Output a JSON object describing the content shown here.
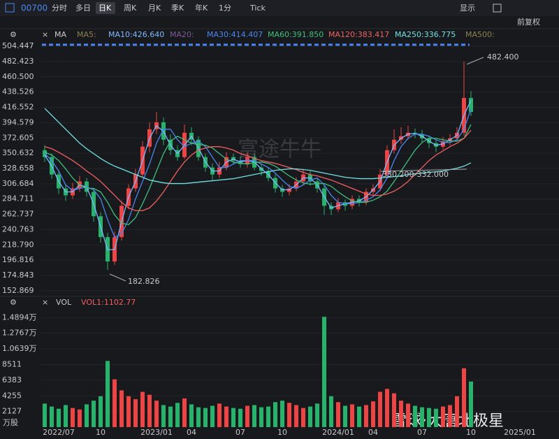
{
  "toolbar": {
    "code": "00700",
    "tabs": [
      "分时",
      "多日",
      "日K",
      "周K",
      "月K",
      "季K",
      "年K",
      "1分",
      "Tick"
    ],
    "display": "显示",
    "adjust": "前复权"
  },
  "ma_label": "MA",
  "watermarks": [
    "富途牛牛",
    "雪球·大唐北极星"
  ],
  "chart_data": {
    "type": "candlestick",
    "categories": [
      null,
      null,
      "2022/07",
      null,
      null,
      null,
      null,
      null,
      "10",
      null,
      null,
      null,
      null,
      null,
      null,
      null,
      "2023/01",
      null,
      null,
      null,
      null,
      "04",
      null,
      null,
      null,
      null,
      null,
      null,
      "07",
      null,
      null,
      null,
      null,
      null,
      "10",
      null,
      null,
      null,
      null,
      null,
      null,
      null,
      "2024/01",
      null,
      null,
      null,
      null,
      "04",
      null,
      null,
      null,
      null,
      null,
      null,
      "07",
      null,
      null,
      null,
      null,
      null,
      null,
      "10",
      null,
      null,
      null,
      null,
      null,
      null,
      "2025/01"
    ],
    "open": [
      355,
      345,
      320,
      300,
      290,
      300,
      310,
      295,
      260,
      230,
      195,
      230,
      275,
      300,
      320,
      360,
      385,
      395,
      370,
      355,
      345,
      380,
      370,
      345,
      330,
      320,
      330,
      345,
      340,
      335,
      345,
      330,
      325,
      315,
      300,
      295,
      300,
      310,
      320,
      310,
      300,
      275,
      270,
      280,
      275,
      285,
      280,
      295,
      300,
      320,
      355,
      370,
      375,
      380,
      378,
      372,
      365,
      360,
      368,
      372,
      380,
      430,
      null,
      null,
      null,
      null,
      null,
      null,
      null
    ],
    "high": [
      362,
      350,
      326,
      306,
      308,
      318,
      315,
      300,
      266,
      236,
      238,
      282,
      306,
      328,
      368,
      395,
      410,
      402,
      378,
      362,
      392,
      388,
      375,
      350,
      336,
      338,
      352,
      350,
      346,
      352,
      350,
      336,
      330,
      320,
      305,
      306,
      316,
      328,
      325,
      315,
      304,
      280,
      286,
      284,
      290,
      290,
      300,
      306,
      328,
      362,
      385,
      388,
      390,
      386,
      384,
      376,
      370,
      374,
      378,
      388,
      482.4,
      440,
      null,
      null,
      null,
      null,
      null,
      null,
      null
    ],
    "low": [
      338,
      314,
      292,
      282,
      285,
      295,
      288,
      252,
      222,
      182.826,
      190,
      225,
      270,
      295,
      315,
      352,
      378,
      362,
      348,
      340,
      342,
      362,
      340,
      324,
      312,
      315,
      326,
      334,
      330,
      330,
      326,
      318,
      310,
      294,
      288,
      290,
      296,
      305,
      304,
      294,
      262,
      262,
      266,
      268,
      270,
      274,
      276,
      290,
      296,
      316,
      350,
      364,
      370,
      372,
      366,
      358,
      352,
      356,
      362,
      368,
      376,
      404,
      null,
      null,
      null,
      null,
      null,
      null,
      null
    ],
    "close": [
      345,
      320,
      300,
      290,
      300,
      310,
      295,
      260,
      230,
      195,
      230,
      275,
      300,
      320,
      360,
      385,
      395,
      370,
      355,
      345,
      380,
      370,
      345,
      330,
      320,
      330,
      345,
      340,
      335,
      345,
      330,
      325,
      315,
      300,
      295,
      300,
      310,
      320,
      310,
      300,
      275,
      270,
      280,
      275,
      285,
      280,
      295,
      300,
      320,
      355,
      370,
      375,
      380,
      378,
      372,
      365,
      360,
      368,
      372,
      380,
      430,
      410,
      null,
      null,
      null,
      null,
      null,
      null,
      null
    ],
    "up_color": "#ef4444",
    "down_color": "#26b36b",
    "series": [
      {
        "name": "MA5:",
        "color": "#8f7f4f"
      },
      {
        "name": "MA10:426.640",
        "color": "#7fb8ff",
        "values": [
          348,
          332,
          310,
          295,
          295,
          305,
          302,
          278,
          245,
          212,
          212,
          252,
          288,
          310,
          340,
          372,
          390,
          382,
          362,
          350,
          362,
          375,
          358,
          338,
          325,
          325,
          338,
          342,
          338,
          340,
          338,
          328,
          320,
          308,
          298,
          298,
          305,
          315,
          315,
          305,
          288,
          272,
          275,
          278,
          280,
          282,
          288,
          298,
          310,
          338,
          362,
          372,
          378,
          379,
          375,
          368,
          362,
          364,
          370,
          376,
          405,
          426.64,
          null,
          null,
          null,
          null,
          null,
          null,
          null
        ]
      },
      {
        "name": "MA20:",
        "color": "#7a5a9a"
      },
      {
        "name": "MA30:414.407",
        "color": "#4a86f0",
        "values": [
          350,
          340,
          325,
          305,
          297,
          300,
          302,
          298,
          285,
          255,
          230,
          235,
          255,
          285,
          310,
          335,
          365,
          385,
          385,
          370,
          360,
          365,
          368,
          360,
          345,
          330,
          330,
          335,
          340,
          340,
          340,
          335,
          330,
          322,
          312,
          303,
          300,
          305,
          312,
          315,
          305,
          290,
          280,
          278,
          278,
          280,
          283,
          288,
          298,
          315,
          340,
          360,
          372,
          378,
          378,
          375,
          370,
          366,
          366,
          370,
          385,
          414.407,
          null,
          null,
          null,
          null,
          null,
          null,
          null
        ]
      },
      {
        "name": "MA60:391.850",
        "color": "#3fbf7f",
        "values": [
          352,
          348,
          340,
          328,
          315,
          305,
          300,
          300,
          295,
          280,
          262,
          250,
          248,
          258,
          278,
          300,
          325,
          350,
          368,
          375,
          370,
          365,
          363,
          362,
          358,
          350,
          342,
          338,
          336,
          335,
          337,
          338,
          336,
          332,
          325,
          318,
          312,
          308,
          306,
          307,
          307,
          303,
          295,
          288,
          282,
          280,
          280,
          283,
          288,
          296,
          310,
          325,
          340,
          355,
          366,
          372,
          372,
          370,
          368,
          368,
          372,
          391.85,
          null,
          null,
          null,
          null,
          null,
          null,
          null
        ]
      },
      {
        "name": "MA120:383.417",
        "color": "#f06060",
        "values": [
          360,
          357,
          352,
          346,
          340,
          333,
          325,
          318,
          310,
          300,
          290,
          280,
          272,
          268,
          268,
          272,
          282,
          295,
          310,
          325,
          338,
          348,
          355,
          358,
          360,
          360,
          358,
          355,
          350,
          347,
          343,
          340,
          338,
          336,
          333,
          330,
          327,
          323,
          320,
          318,
          315,
          312,
          308,
          304,
          300,
          296,
          292,
          290,
          290,
          292,
          296,
          302,
          310,
          320,
          330,
          340,
          348,
          354,
          360,
          365,
          372,
          383.417,
          null,
          null,
          null,
          null,
          null,
          null,
          null
        ]
      },
      {
        "name": "MA250:336.775",
        "color": "#70e0e0",
        "values": [
          415,
          405,
          395,
          385,
          375,
          365,
          357,
          350,
          343,
          337,
          332,
          328,
          324,
          320,
          316,
          312,
          310,
          308,
          307,
          307,
          307,
          308,
          309,
          310,
          311,
          312,
          313,
          314,
          316,
          318,
          320,
          322,
          324,
          326,
          327,
          328,
          328,
          327,
          326,
          324,
          322,
          320,
          318,
          316,
          315,
          314,
          314,
          314,
          315,
          316,
          317,
          318,
          320,
          321,
          322,
          323,
          324,
          325,
          327,
          329,
          332,
          336.775,
          null,
          null,
          null,
          null,
          null,
          null,
          null
        ]
      },
      {
        "name": "MA500:",
        "color": "#8f7f4f"
      }
    ],
    "ylim": [
      146.8,
      510.5
    ],
    "yticks": [
      504.447,
      482.423,
      {
        "value": 460.5,
        "label": "460.500"
      },
      438.526,
      416.552,
      394.579,
      372.605,
      350.632,
      328.658,
      306.684,
      284.711,
      262.737,
      240.763,
      {
        "value": 218.79,
        "label": "218.790"
      },
      196.816,
      174.843,
      152.869
    ],
    "grid": true,
    "annotations": [
      "482.400",
      "182.826",
      "330.200-332.000"
    ],
    "volume": {
      "title": "VOL",
      "label": "VOL1:1102.77",
      "unit": "万股",
      "values": [
        3200,
        2800,
        2500,
        3000,
        2600,
        2400,
        3100,
        3600,
        4200,
        9000,
        6500,
        5000,
        4200,
        3800,
        4800,
        4400,
        3600,
        3000,
        2800,
        3300,
        3900,
        3100,
        2700,
        2600,
        2900,
        3200,
        2800,
        2600,
        2500,
        2900,
        3000,
        2700,
        2800,
        3400,
        3600,
        3300,
        3000,
        2600,
        2800,
        3200,
        15000,
        4200,
        3400,
        2900,
        3100,
        2800,
        3000,
        3500,
        4800,
        5200,
        4600,
        3600,
        3200,
        2900,
        2700,
        2600,
        2500,
        2800,
        3000,
        4200,
        8000,
        6200,
        null,
        null,
        null,
        null,
        null,
        null,
        null
      ],
      "ylim": [
        0,
        15500
      ],
      "yticks": [
        {
          "value": 14894,
          "label": "1.4894万"
        },
        {
          "value": 12767,
          "label": "1.2767万"
        },
        {
          "value": 10639,
          "label": "1.0639万"
        },
        8511,
        6383,
        4255,
        2127
      ]
    }
  }
}
